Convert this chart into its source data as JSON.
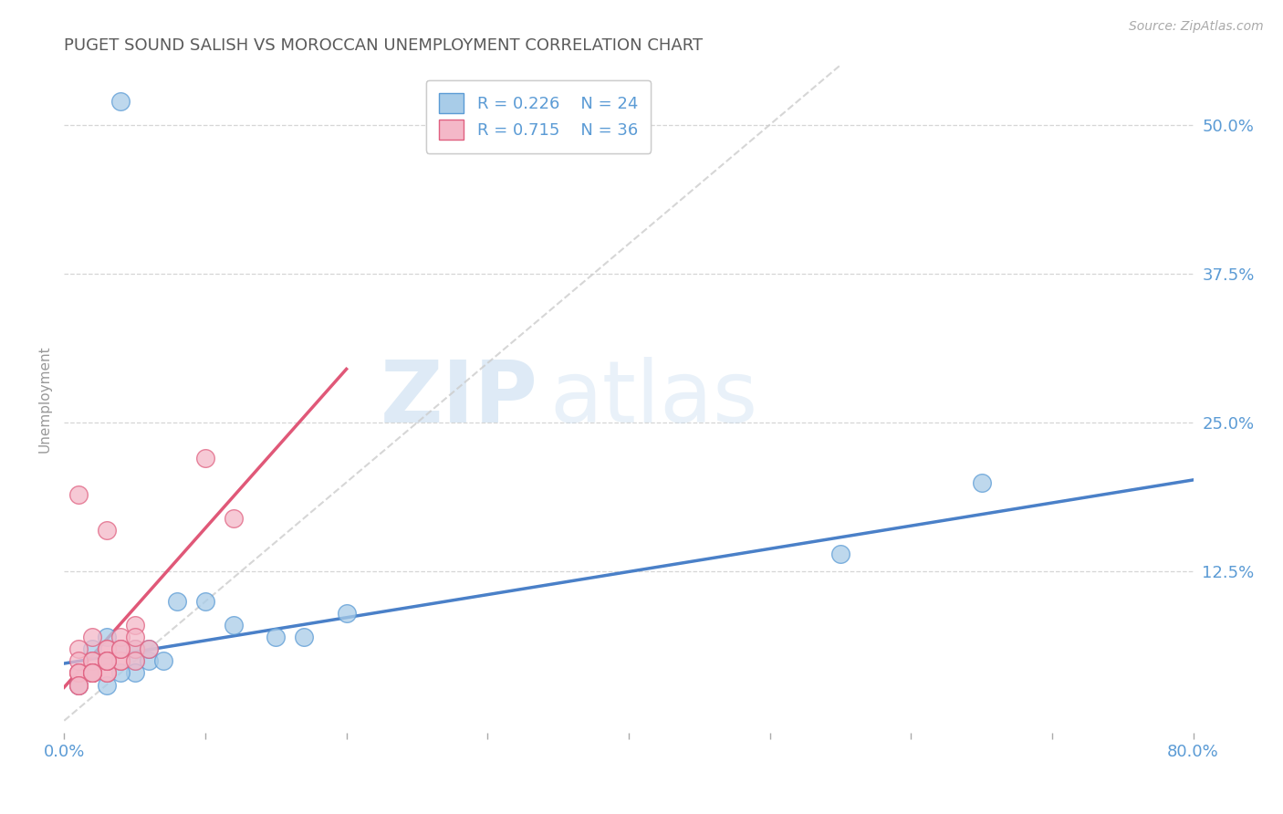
{
  "title": "PUGET SOUND SALISH VS MOROCCAN UNEMPLOYMENT CORRELATION CHART",
  "source": "Source: ZipAtlas.com",
  "ylabel": "Unemployment",
  "xlim": [
    0.0,
    0.8
  ],
  "ylim": [
    -0.01,
    0.55
  ],
  "ytick_labels": [
    "12.5%",
    "25.0%",
    "37.5%",
    "50.0%"
  ],
  "ytick_values": [
    0.125,
    0.25,
    0.375,
    0.5
  ],
  "background_color": "#ffffff",
  "grid_color": "#cccccc",
  "title_color": "#5a5a5a",
  "axis_label_color": "#5b9bd5",
  "legend_r1": "R = 0.226",
  "legend_n1": "N = 24",
  "legend_r2": "R = 0.715",
  "legend_n2": "N = 36",
  "watermark_zip": "ZIP",
  "watermark_atlas": "atlas",
  "blue_fill": "#a8cce8",
  "blue_edge": "#5b9bd5",
  "pink_fill": "#f4b8c8",
  "pink_edge": "#e06080",
  "blue_line_color": "#4a80c8",
  "pink_line_color": "#e05878",
  "ref_line_color": "#cccccc",
  "blue_scatter_x": [
    0.04,
    0.02,
    0.03,
    0.04,
    0.05,
    0.05,
    0.06,
    0.07,
    0.06,
    0.05,
    0.04,
    0.03,
    0.02,
    0.01,
    0.02,
    0.03,
    0.08,
    0.1,
    0.12,
    0.15,
    0.17,
    0.2,
    0.55,
    0.65
  ],
  "blue_scatter_y": [
    0.52,
    0.06,
    0.07,
    0.06,
    0.05,
    0.06,
    0.05,
    0.05,
    0.06,
    0.04,
    0.04,
    0.05,
    0.04,
    0.03,
    0.04,
    0.03,
    0.1,
    0.1,
    0.08,
    0.07,
    0.07,
    0.09,
    0.14,
    0.2
  ],
  "pink_scatter_x": [
    0.01,
    0.02,
    0.03,
    0.04,
    0.05,
    0.01,
    0.02,
    0.03,
    0.04,
    0.05,
    0.01,
    0.02,
    0.01,
    0.02,
    0.03,
    0.01,
    0.02,
    0.03,
    0.01,
    0.02,
    0.03,
    0.04,
    0.01,
    0.02,
    0.03,
    0.04,
    0.05,
    0.06,
    0.01,
    0.02,
    0.03,
    0.1,
    0.12,
    0.03,
    0.04,
    0.05
  ],
  "pink_scatter_y": [
    0.19,
    0.07,
    0.06,
    0.07,
    0.08,
    0.06,
    0.05,
    0.06,
    0.05,
    0.06,
    0.04,
    0.04,
    0.05,
    0.04,
    0.04,
    0.04,
    0.05,
    0.04,
    0.04,
    0.04,
    0.05,
    0.05,
    0.03,
    0.04,
    0.05,
    0.06,
    0.05,
    0.06,
    0.03,
    0.04,
    0.16,
    0.22,
    0.17,
    0.05,
    0.06,
    0.07
  ],
  "blue_trend_x0": 0.0,
  "blue_trend_y0": 0.048,
  "blue_trend_x1": 0.8,
  "blue_trend_y1": 0.202,
  "pink_trend_x0": 0.0,
  "pink_trend_y0": 0.028,
  "pink_trend_x1": 0.2,
  "pink_trend_y1": 0.295
}
